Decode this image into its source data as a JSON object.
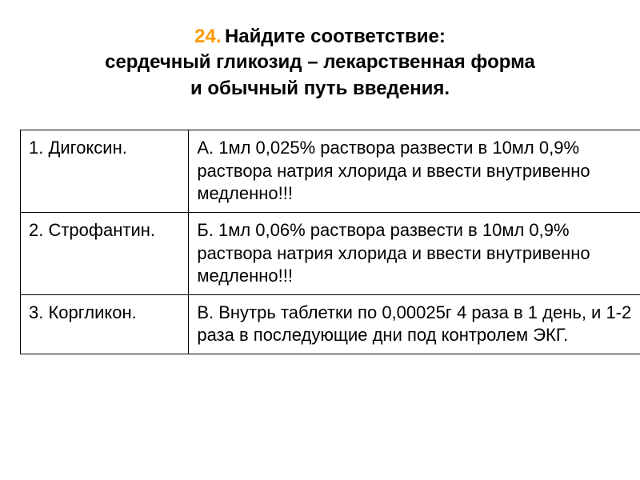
{
  "heading": {
    "number": "24.",
    "line1": "Найдите соответствие:",
    "line2": "сердечный гликозид – лекарственная форма",
    "line3": "и обычный путь введения.",
    "number_color": "#ff9900",
    "text_color": "#000000",
    "font_size": 24,
    "font_weight": "bold"
  },
  "table": {
    "type": "table",
    "border_color": "#000000",
    "font_size": 22,
    "text_color": "#000000",
    "background_color": "#ffffff",
    "col_widths": [
      "27%",
      "73%"
    ],
    "rows": [
      {
        "left": "1. Дигоксин.",
        "right": "А.  1мл 0,025% раствора развести в 10мл 0,9% раствора натрия хлорида и ввести внутривенно медленно!!!"
      },
      {
        "left": "2. Строфантин.",
        "right": "Б. 1мл 0,06% раствора развести в 10мл 0,9% раствора натрия хлорида и ввести внутривенно медленно!!!"
      },
      {
        "left": "3. Коргликон.",
        "right": "В. Внутрь таблетки  по 0,00025г 4 раза в 1 день, и 1-2 раза в последующие дни под контролем ЭКГ."
      }
    ]
  }
}
